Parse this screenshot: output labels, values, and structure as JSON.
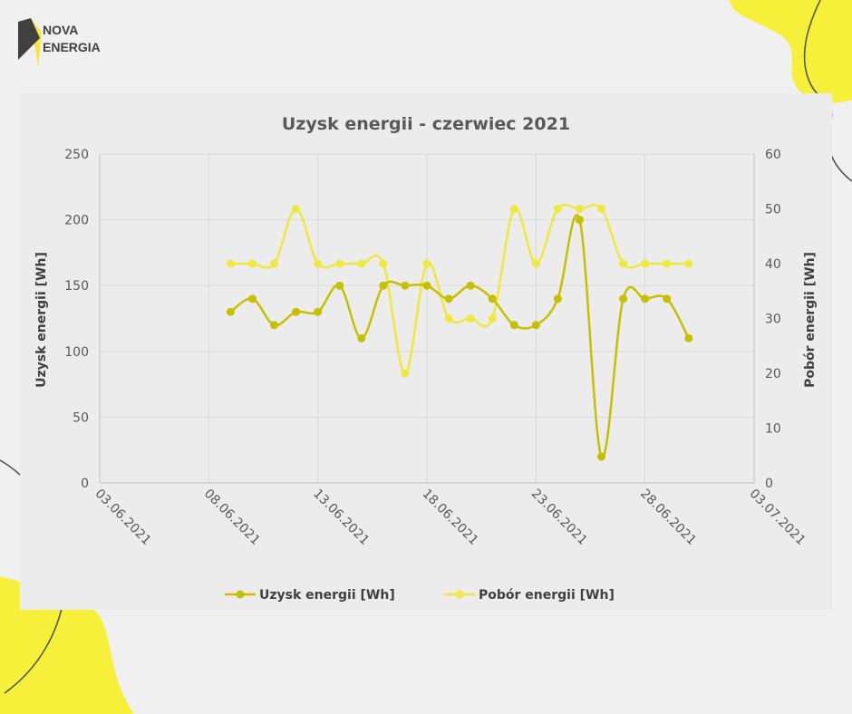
{
  "brand": {
    "line1": "NOVA",
    "line2": "ENERGIA"
  },
  "colors": {
    "background": "#f0f0f0",
    "card": "#ececec",
    "blob": "#f7f03a",
    "logo_dark": "#404040",
    "logo_yellow": "#f4e83a",
    "series1": "#c5c000",
    "series2": "#eee83f",
    "grid": "#d9d9d9"
  },
  "chart_data": {
    "type": "line",
    "title": "Uzysk energii - czerwiec 2021",
    "ylabel": "Uzysk energii [Wh]",
    "y2label": "Pobór energii [Wh]",
    "xlim": [
      "2021-06-03",
      "2021-07-03"
    ],
    "ylim": [
      0,
      250
    ],
    "y2lim": [
      0,
      60
    ],
    "x_ticks": [
      "03.06.2021",
      "08.06.2021",
      "13.06.2021",
      "18.06.2021",
      "23.06.2021",
      "28.06.2021",
      "03.07.2021"
    ],
    "y_ticks": [
      "0",
      "50",
      "100",
      "150",
      "200",
      "250"
    ],
    "y2_ticks": [
      "0",
      "10",
      "20",
      "30",
      "40",
      "50",
      "60"
    ],
    "grid": true,
    "legend_position": "bottom",
    "smooth": true,
    "series": [
      {
        "name": "Uzysk energii [Wh]",
        "axis": "left",
        "color": "#c5c000",
        "x": [
          "2021-06-09",
          "2021-06-10",
          "2021-06-11",
          "2021-06-12",
          "2021-06-13",
          "2021-06-14",
          "2021-06-15",
          "2021-06-16",
          "2021-06-17",
          "2021-06-18",
          "2021-06-19",
          "2021-06-20",
          "2021-06-21",
          "2021-06-22",
          "2021-06-23",
          "2021-06-24",
          "2021-06-25",
          "2021-06-26",
          "2021-06-27",
          "2021-06-28",
          "2021-06-29",
          "2021-06-30"
        ],
        "values": [
          130,
          140,
          120,
          130,
          130,
          150,
          110,
          150,
          150,
          150,
          140,
          150,
          140,
          120,
          120,
          140,
          200,
          20,
          140,
          140,
          140,
          110
        ]
      },
      {
        "name": "Pobór energii [Wh]",
        "axis": "right",
        "color": "#eee83f",
        "x": [
          "2021-06-09",
          "2021-06-10",
          "2021-06-11",
          "2021-06-12",
          "2021-06-13",
          "2021-06-14",
          "2021-06-15",
          "2021-06-16",
          "2021-06-17",
          "2021-06-18",
          "2021-06-19",
          "2021-06-20",
          "2021-06-21",
          "2021-06-22",
          "2021-06-23",
          "2021-06-24",
          "2021-06-25",
          "2021-06-26",
          "2021-06-27",
          "2021-06-28",
          "2021-06-29",
          "2021-06-30"
        ],
        "values": [
          40,
          40,
          40,
          50,
          40,
          40,
          40,
          40,
          20,
          40,
          30,
          30,
          30,
          50,
          40,
          50,
          50,
          50,
          40,
          40,
          40,
          40
        ]
      }
    ]
  }
}
